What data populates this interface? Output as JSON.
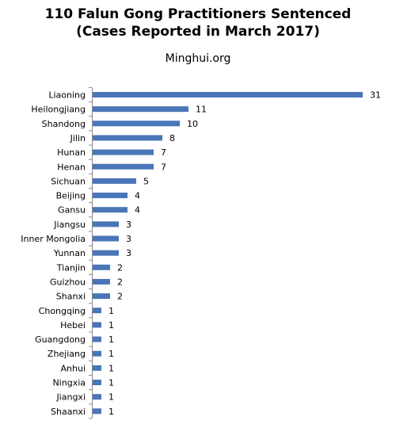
{
  "chart_data": {
    "type": "bar",
    "orientation": "horizontal",
    "title_lines": [
      "110 Falun Gong Practitioners Sentenced",
      "(Cases Reported in March 2017)"
    ],
    "subtitle": "Minghui.org",
    "categories": [
      "Liaoning",
      "Heilongjiang",
      "Shandong",
      "Jilin",
      "Hunan",
      "Henan",
      "Sichuan",
      "Beijing",
      "Gansu",
      "Jiangsu",
      "Inner Mongolia",
      "Yunnan",
      "Tianjin",
      "Guizhou",
      "Shanxi",
      "Chongqing",
      "Hebei",
      "Guangdong",
      "Zhejiang",
      "Anhui",
      "Ningxia",
      "Jiangxi",
      "Shaanxi"
    ],
    "values": [
      31,
      11,
      10,
      8,
      7,
      7,
      5,
      4,
      4,
      3,
      3,
      3,
      2,
      2,
      2,
      1,
      1,
      1,
      1,
      1,
      1,
      1,
      1
    ],
    "xlim": [
      0,
      31
    ],
    "grid": false,
    "legend": "none",
    "bar_color": "#4a76b8",
    "data_labels": true
  }
}
